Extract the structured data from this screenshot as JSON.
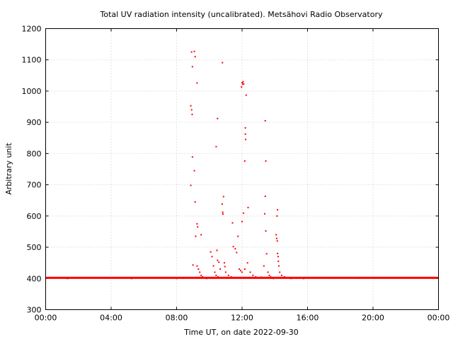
{
  "chart_data": {
    "type": "scatter",
    "title": "Total UV radiation intensity (uncalibrated). Metsähovi Radio Observatory",
    "xlabel": "Time UT, on date 2022-09-30",
    "ylabel": "Arbitrary unit",
    "xlim": [
      "00:00",
      "24:00"
    ],
    "ylim": [
      300,
      1200
    ],
    "x_ticks": [
      "00:00",
      "04:00",
      "08:00",
      "12:00",
      "16:00",
      "20:00",
      "00:00"
    ],
    "y_ticks": [
      300,
      400,
      500,
      600,
      700,
      800,
      900,
      1000,
      1100,
      1200
    ],
    "grid": true,
    "series": [
      {
        "color": "#ff0000",
        "baseline": {
          "value": 402,
          "from": "00:00",
          "to": "24:00"
        },
        "points": [
          [
            "01:20",
            400
          ],
          [
            "05:15",
            400
          ],
          [
            "07:20",
            403
          ],
          [
            "08:00",
            400
          ],
          [
            "08:25",
            401
          ],
          [
            "08:55",
            1125
          ],
          [
            "09:05",
            1127
          ],
          [
            "09:08",
            1110
          ],
          [
            "08:58",
            1078
          ],
          [
            "09:15",
            1026
          ],
          [
            "08:52",
            953
          ],
          [
            "08:55",
            940
          ],
          [
            "08:57",
            925
          ],
          [
            "08:58",
            789
          ],
          [
            "09:05",
            745
          ],
          [
            "08:52",
            698
          ],
          [
            "09:08",
            645
          ],
          [
            "09:15",
            575
          ],
          [
            "09:17",
            565
          ],
          [
            "09:30",
            540
          ],
          [
            "09:10",
            535
          ],
          [
            "09:00",
            443
          ],
          [
            "09:15",
            440
          ],
          [
            "09:20",
            430
          ],
          [
            "09:25",
            420
          ],
          [
            "09:30",
            410
          ],
          [
            "09:35",
            405
          ],
          [
            "09:40",
            402
          ],
          [
            "09:50",
            400
          ],
          [
            "09:58",
            402
          ],
          [
            "10:05",
            485
          ],
          [
            "10:10",
            470
          ],
          [
            "10:15",
            440
          ],
          [
            "10:20",
            420
          ],
          [
            "10:25",
            410
          ],
          [
            "10:28",
            490
          ],
          [
            "10:30",
            458
          ],
          [
            "10:35",
            452
          ],
          [
            "10:40",
            430
          ],
          [
            "10:32",
            405
          ],
          [
            "10:30",
            912
          ],
          [
            "10:25",
            822
          ],
          [
            "10:48",
            1091
          ],
          [
            "10:52",
            662
          ],
          [
            "10:47",
            638
          ],
          [
            "10:49",
            612
          ],
          [
            "10:50",
            606
          ],
          [
            "10:55",
            450
          ],
          [
            "10:57",
            438
          ],
          [
            "11:00",
            420
          ],
          [
            "11:10",
            410
          ],
          [
            "11:20",
            405
          ],
          [
            "11:25",
            578
          ],
          [
            "11:28",
            502
          ],
          [
            "11:35",
            495
          ],
          [
            "11:40",
            483
          ],
          [
            "11:45",
            535
          ],
          [
            "11:50",
            430
          ],
          [
            "11:55",
            425
          ],
          [
            "12:00",
            420
          ],
          [
            "12:00",
            1027
          ],
          [
            "12:02",
            1022
          ],
          [
            "12:04",
            1030
          ],
          [
            "12:06",
            1023
          ],
          [
            "11:58",
            1013
          ],
          [
            "12:15",
            987
          ],
          [
            "12:12",
            882
          ],
          [
            "12:12",
            862
          ],
          [
            "12:13",
            845
          ],
          [
            "12:10",
            776
          ],
          [
            "12:22",
            627
          ],
          [
            "12:05",
            609
          ],
          [
            "12:00",
            582
          ],
          [
            "12:10",
            430
          ],
          [
            "12:20",
            450
          ],
          [
            "12:30",
            420
          ],
          [
            "12:40",
            410
          ],
          [
            "12:50",
            405
          ],
          [
            "13:00",
            402
          ],
          [
            "13:10",
            404
          ],
          [
            "13:25",
            905
          ],
          [
            "13:27",
            776
          ],
          [
            "13:25",
            663
          ],
          [
            "13:23",
            607
          ],
          [
            "13:27",
            552
          ],
          [
            "13:30",
            479
          ],
          [
            "13:20",
            440
          ],
          [
            "13:35",
            420
          ],
          [
            "13:40",
            410
          ],
          [
            "13:45",
            405
          ],
          [
            "13:55",
            400
          ],
          [
            "14:00",
            402
          ],
          [
            "14:05",
            540
          ],
          [
            "14:10",
            620
          ],
          [
            "14:08",
            600
          ],
          [
            "14:07",
            528
          ],
          [
            "14:09",
            520
          ],
          [
            "14:10",
            480
          ],
          [
            "14:12",
            470
          ],
          [
            "14:13",
            455
          ],
          [
            "14:15",
            440
          ],
          [
            "14:18",
            420
          ],
          [
            "14:25",
            410
          ],
          [
            "14:35",
            405
          ],
          [
            "14:45",
            402
          ],
          [
            "15:00",
            400
          ],
          [
            "15:20",
            401
          ],
          [
            "15:45",
            400
          ],
          [
            "16:00",
            402
          ],
          [
            "19:10",
            401
          ]
        ]
      }
    ]
  }
}
